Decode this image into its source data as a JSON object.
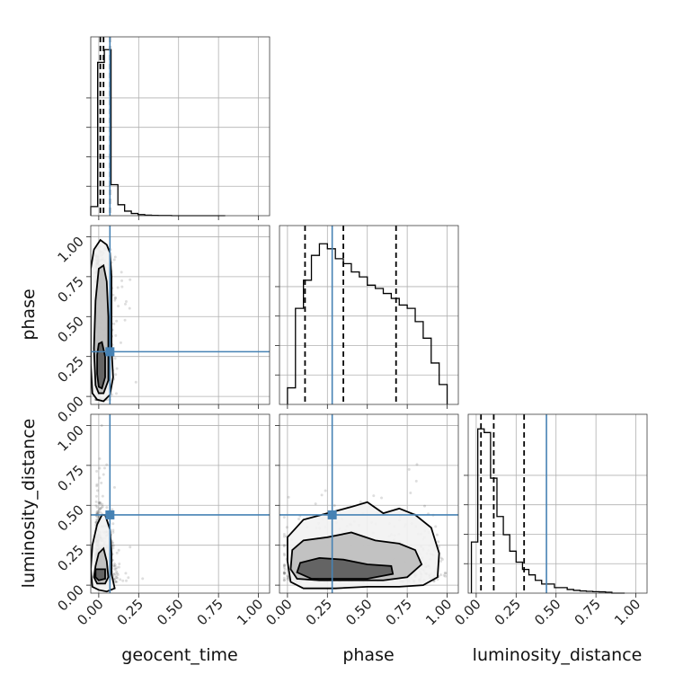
{
  "colors": {
    "truth": "#4682b4",
    "hist": "#000000",
    "grid": "#b0b0b0"
  },
  "chart_data": {
    "type": "corner",
    "parameters": [
      "geocent_time",
      "phase",
      "luminosity_distance"
    ],
    "axis_range": [
      -0.05,
      1.07
    ],
    "ticks": [
      0.0,
      0.25,
      0.5,
      0.75,
      1.0
    ],
    "tick_labels": [
      "0.00",
      "0.25",
      "0.50",
      "0.75",
      "1.00"
    ],
    "truths": {
      "geocent_time": 0.07,
      "phase": 0.28,
      "luminosity_distance": 0.44
    },
    "quantiles": {
      "geocent_time": [
        0.01,
        0.03,
        0.07
      ],
      "phase": [
        0.11,
        0.35,
        0.68
      ],
      "luminosity_distance": [
        0.03,
        0.11,
        0.3
      ]
    },
    "histograms": {
      "geocent_time": {
        "bin_edges": [
          -0.05,
          -0.007,
          0.035,
          0.077,
          0.12,
          0.162,
          0.204,
          0.246,
          0.288,
          0.33,
          0.372,
          0.414,
          0.456,
          0.498,
          0.54,
          0.582,
          0.624,
          0.666,
          0.708,
          0.75,
          0.792
        ],
        "counts": [
          0.05,
          0.84,
          0.91,
          0.17,
          0.06,
          0.025,
          0.012,
          0.006,
          0.003,
          0.002,
          0.001,
          0.001,
          0.0,
          0.0,
          0.0,
          0.0,
          0.0,
          0.0,
          0.0,
          0.0
        ],
        "ylim": [
          0,
          0.98
        ]
      },
      "phase": {
        "bin_edges": [
          0.0,
          0.05,
          0.1,
          0.15,
          0.2,
          0.25,
          0.3,
          0.35,
          0.4,
          0.45,
          0.5,
          0.55,
          0.6,
          0.65,
          0.7,
          0.75,
          0.8,
          0.85,
          0.9,
          0.95,
          1.0
        ],
        "counts": [
          0.1,
          0.58,
          0.75,
          0.9,
          0.97,
          0.94,
          0.88,
          0.85,
          0.8,
          0.77,
          0.72,
          0.7,
          0.67,
          0.64,
          0.6,
          0.58,
          0.5,
          0.4,
          0.25,
          0.12
        ],
        "ylim": [
          0,
          1.08
        ]
      },
      "luminosity_distance": {
        "bin_edges": [
          -0.03,
          0.01,
          0.05,
          0.09,
          0.13,
          0.17,
          0.21,
          0.25,
          0.29,
          0.33,
          0.37,
          0.41,
          0.45,
          0.49,
          0.53,
          0.57,
          0.61,
          0.65,
          0.69,
          0.73,
          0.77,
          0.81,
          0.85,
          0.89,
          0.93
        ],
        "counts": [
          0.28,
          0.9,
          0.88,
          0.63,
          0.42,
          0.32,
          0.23,
          0.17,
          0.13,
          0.1,
          0.07,
          0.05,
          0.05,
          0.03,
          0.03,
          0.02,
          0.015,
          0.012,
          0.01,
          0.008,
          0.007,
          0.005,
          0.0,
          0.0
        ],
        "ylim": [
          0,
          0.98
        ]
      }
    },
    "contours": {
      "phase|geocent_time": {
        "levels": [
          [
            [
              0.05,
              0.95
            ],
            [
              0.07,
              0.9
            ],
            [
              0.08,
              0.75
            ],
            [
              0.08,
              0.5
            ],
            [
              0.08,
              0.3
            ],
            [
              0.09,
              0.12
            ],
            [
              0.07,
              0.01
            ],
            [
              0.03,
              -0.03
            ],
            [
              -0.01,
              -0.02
            ],
            [
              -0.04,
              0.02
            ],
            [
              -0.05,
              0.2
            ],
            [
              -0.05,
              0.5
            ],
            [
              -0.05,
              0.8
            ],
            [
              -0.03,
              0.92
            ],
            [
              0.01,
              0.98
            ],
            [
              0.05,
              0.95
            ]
          ],
          [
            [
              0.03,
              0.82
            ],
            [
              0.05,
              0.72
            ],
            [
              0.06,
              0.5
            ],
            [
              0.06,
              0.3
            ],
            [
              0.06,
              0.1
            ],
            [
              0.03,
              0.02
            ],
            [
              0.0,
              0.02
            ],
            [
              -0.02,
              0.07
            ],
            [
              -0.03,
              0.3
            ],
            [
              -0.02,
              0.6
            ],
            [
              0.0,
              0.8
            ],
            [
              0.03,
              0.82
            ]
          ],
          [
            [
              0.02,
              0.34
            ],
            [
              0.04,
              0.25
            ],
            [
              0.04,
              0.12
            ],
            [
              0.02,
              0.05
            ],
            [
              0.0,
              0.06
            ],
            [
              -0.01,
              0.14
            ],
            [
              -0.01,
              0.26
            ],
            [
              0.0,
              0.33
            ],
            [
              0.02,
              0.34
            ]
          ]
        ]
      },
      "luminosity_distance|geocent_time": {
        "levels": [
          [
            [
              0.04,
              0.44
            ],
            [
              0.07,
              0.35
            ],
            [
              0.08,
              0.2
            ],
            [
              0.08,
              0.07
            ],
            [
              0.1,
              -0.02
            ],
            [
              0.05,
              -0.04
            ],
            [
              0.0,
              -0.03
            ],
            [
              -0.04,
              -0.01
            ],
            [
              -0.05,
              0.1
            ],
            [
              -0.04,
              0.25
            ],
            [
              -0.01,
              0.38
            ],
            [
              0.02,
              0.44
            ],
            [
              0.04,
              0.44
            ]
          ],
          [
            [
              0.03,
              0.23
            ],
            [
              0.05,
              0.15
            ],
            [
              0.06,
              0.05
            ],
            [
              0.04,
              0.01
            ],
            [
              -0.01,
              0.01
            ],
            [
              -0.03,
              0.05
            ],
            [
              -0.02,
              0.12
            ],
            [
              0.0,
              0.2
            ],
            [
              0.03,
              0.23
            ]
          ],
          [
            [
              0.04,
              0.1
            ],
            [
              0.04,
              0.04
            ],
            [
              0.0,
              0.03
            ],
            [
              -0.02,
              0.05
            ],
            [
              -0.02,
              0.1
            ],
            [
              0.04,
              0.1
            ]
          ]
        ]
      },
      "luminosity_distance|phase": {
        "levels": [
          [
            [
              0.0,
              0.15
            ],
            [
              0.0,
              0.3
            ],
            [
              0.1,
              0.41
            ],
            [
              0.25,
              0.45
            ],
            [
              0.4,
              0.49
            ],
            [
              0.5,
              0.52
            ],
            [
              0.6,
              0.45
            ],
            [
              0.7,
              0.48
            ],
            [
              0.8,
              0.44
            ],
            [
              0.9,
              0.36
            ],
            [
              0.95,
              0.2
            ],
            [
              0.94,
              0.05
            ],
            [
              0.85,
              0.0
            ],
            [
              0.7,
              -0.01
            ],
            [
              0.5,
              -0.01
            ],
            [
              0.3,
              -0.02
            ],
            [
              0.1,
              -0.02
            ],
            [
              0.02,
              0.02
            ],
            [
              0.0,
              0.15
            ]
          ],
          [
            [
              0.02,
              0.1
            ],
            [
              0.03,
              0.22
            ],
            [
              0.1,
              0.28
            ],
            [
              0.25,
              0.3
            ],
            [
              0.4,
              0.33
            ],
            [
              0.55,
              0.28
            ],
            [
              0.7,
              0.26
            ],
            [
              0.8,
              0.22
            ],
            [
              0.84,
              0.13
            ],
            [
              0.75,
              0.05
            ],
            [
              0.6,
              0.03
            ],
            [
              0.4,
              0.03
            ],
            [
              0.2,
              0.03
            ],
            [
              0.06,
              0.04
            ],
            [
              0.02,
              0.1
            ]
          ],
          [
            [
              0.06,
              0.08
            ],
            [
              0.08,
              0.14
            ],
            [
              0.2,
              0.17
            ],
            [
              0.35,
              0.16
            ],
            [
              0.5,
              0.13
            ],
            [
              0.65,
              0.12
            ],
            [
              0.66,
              0.07
            ],
            [
              0.5,
              0.04
            ],
            [
              0.3,
              0.04
            ],
            [
              0.15,
              0.04
            ],
            [
              0.06,
              0.08
            ]
          ]
        ]
      }
    }
  }
}
